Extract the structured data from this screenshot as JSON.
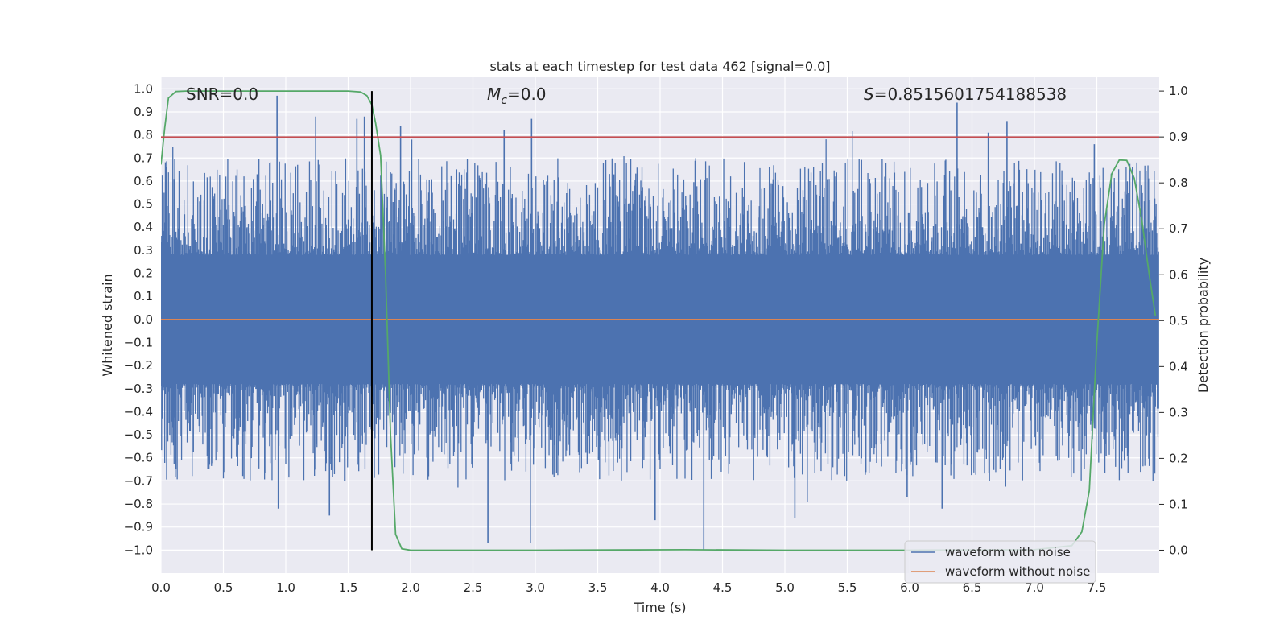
{
  "chart_data": {
    "type": "line",
    "title": "stats at each timestep for test data 462 [signal=0.0]",
    "xlabel": "Time (s)",
    "ylabel_left": "Whitened strain",
    "ylabel_right": "Detection probability",
    "xlim": [
      0.0,
      8.0
    ],
    "ylim_left": [
      -1.1,
      1.05
    ],
    "ylim_right": [
      -0.05,
      1.03
    ],
    "x_ticks": [
      "0.0",
      "0.5",
      "1.0",
      "1.5",
      "2.0",
      "2.5",
      "3.0",
      "3.5",
      "4.0",
      "4.5",
      "5.0",
      "5.5",
      "6.0",
      "6.5",
      "7.0",
      "7.5"
    ],
    "y_left_ticks": [
      "1.0",
      "0.9",
      "0.8",
      "0.7",
      "0.6",
      "0.5",
      "0.4",
      "0.3",
      "0.2",
      "0.1",
      "0.0",
      "−0.1",
      "−0.2",
      "−0.3",
      "−0.4",
      "−0.5",
      "−0.6",
      "−0.7",
      "−0.8",
      "−0.9",
      "−1.0"
    ],
    "y_right_ticks": [
      "1.0",
      "0.9",
      "0.8",
      "0.7",
      "0.6",
      "0.5",
      "0.4",
      "0.3",
      "0.2",
      "0.1",
      "0.0"
    ],
    "annotations": {
      "snr": "SNR=0.0",
      "mc_symbol": "M",
      "mc_sub": "c",
      "mc_value": "=0.0",
      "s_symbol": "S",
      "s_value": "=0.8515601754188538"
    },
    "legend": {
      "position": "lower-right",
      "entries": [
        "waveform with noise",
        "waveform without noise"
      ]
    },
    "grid": true,
    "series": [
      {
        "name": "waveform with noise",
        "axis": "left",
        "color": "#4c72b0",
        "note_style": "dense noise, amplitude about ±0.45 with spikes to ±1.0",
        "spikes": [
          {
            "x": 0.93,
            "y": 0.97
          },
          {
            "x": 1.24,
            "y": 0.88
          },
          {
            "x": 1.57,
            "y": 0.87
          },
          {
            "x": 1.63,
            "y": 0.88
          },
          {
            "x": 1.92,
            "y": 0.84
          },
          {
            "x": 2.75,
            "y": 0.82
          },
          {
            "x": 2.97,
            "y": 0.87
          },
          {
            "x": 6.38,
            "y": 0.94
          },
          {
            "x": 6.63,
            "y": 0.81
          },
          {
            "x": 6.78,
            "y": 0.86
          },
          {
            "x": 7.48,
            "y": 0.76
          },
          {
            "x": 4.35,
            "y": -1.0
          },
          {
            "x": 2.62,
            "y": -0.97
          },
          {
            "x": 2.96,
            "y": -0.97
          },
          {
            "x": 0.94,
            "y": -0.82
          },
          {
            "x": 1.35,
            "y": -0.85
          },
          {
            "x": 5.98,
            "y": -0.77
          },
          {
            "x": 6.26,
            "y": -0.82
          },
          {
            "x": 5.08,
            "y": -0.86
          },
          {
            "x": 3.96,
            "y": -0.87
          }
        ]
      },
      {
        "name": "waveform without noise",
        "axis": "left",
        "color": "#dd8452",
        "x": [
          0.0,
          8.0
        ],
        "y": [
          0.0,
          0.0
        ]
      },
      {
        "axis": "right",
        "color": "#55a868",
        "x": [
          0.0,
          0.03,
          0.06,
          0.12,
          0.2,
          1.0,
          1.5,
          1.6,
          1.65,
          1.69,
          1.72,
          1.76,
          1.8,
          1.84,
          1.88,
          1.93,
          2.0,
          3.0,
          4.2,
          5.0,
          6.0,
          7.0,
          7.3,
          7.38,
          7.44,
          7.5,
          7.56,
          7.62,
          7.68,
          7.74,
          7.8,
          7.86,
          7.92,
          7.97
        ],
        "y": [
          0.84,
          0.92,
          0.985,
          0.999,
          1.0,
          1.0,
          1.0,
          0.998,
          0.99,
          0.97,
          0.93,
          0.86,
          0.6,
          0.25,
          0.035,
          0.003,
          0.0,
          0.0,
          0.001,
          0.0,
          0.0,
          0.001,
          0.01,
          0.04,
          0.13,
          0.45,
          0.71,
          0.82,
          0.85,
          0.849,
          0.81,
          0.72,
          0.6,
          0.51
        ]
      },
      {
        "name": "threshold",
        "axis": "right",
        "color": "#c44e52",
        "x": [
          0.0,
          8.0
        ],
        "y": [
          0.9,
          0.9
        ]
      }
    ],
    "vertical_marker": {
      "x": 1.69,
      "color": "#000000",
      "y_from": 0.0,
      "y_to": 1.0
    }
  }
}
